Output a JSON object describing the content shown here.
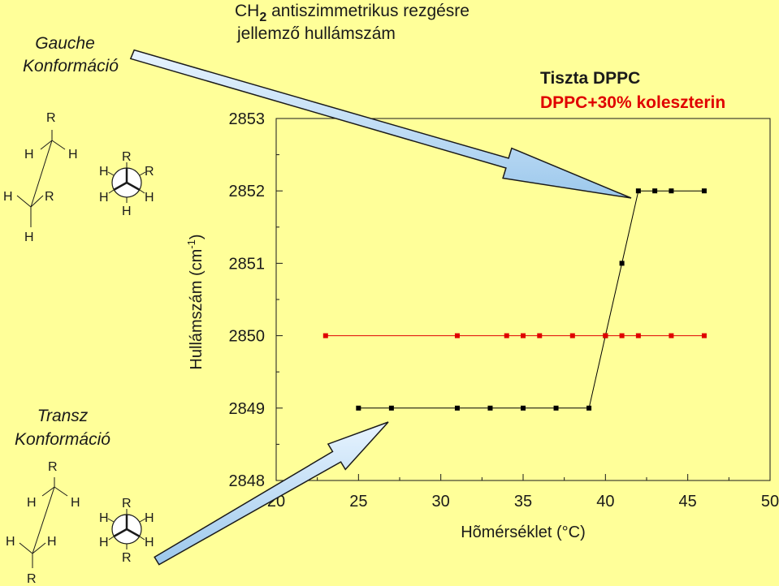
{
  "header": {
    "ch2_main": "CH",
    "ch2_sub": "2",
    "ch2_rest": " antiszimmetrikus rezgésre",
    "line2": "jellemző hullámszám"
  },
  "gauche": {
    "line1": "Gauche",
    "line2": "Konformáció"
  },
  "transz": {
    "line1": "Transz",
    "line2": "Konformáció"
  },
  "legend": {
    "pure": {
      "label": "Tiszta DPPC",
      "color": "#1a1a1a"
    },
    "chol": {
      "label": "DPPC+30% koleszterin",
      "color": "#e00000"
    }
  },
  "chart_data": {
    "type": "scatter",
    "xlabel": "Hõmérséklet (°C)",
    "ylabel_main": "Hullámszám (cm",
    "ylabel_sup": "-1",
    "ylabel_close": ")",
    "xlim": [
      20,
      50
    ],
    "ylim": [
      2848,
      2853
    ],
    "x_ticks": [
      "20",
      "25",
      "30",
      "35",
      "40",
      "45",
      "50"
    ],
    "y_ticks": [
      "2853",
      "2852",
      "2851",
      "2850",
      "2849",
      "2848"
    ],
    "series": [
      {
        "name": "Tiszta DPPC",
        "color": "#000000",
        "x": [
          25,
          27,
          31,
          33,
          35,
          37,
          39,
          40,
          41,
          42,
          43,
          44,
          46
        ],
        "y": [
          2849,
          2849,
          2849,
          2849,
          2849,
          2849,
          2849,
          2850,
          2851,
          2852,
          2852,
          2852,
          2852
        ]
      },
      {
        "name": "DPPC+30% koleszterin",
        "color": "#e00000",
        "x": [
          23,
          31,
          34,
          35,
          36,
          38,
          40,
          41,
          42,
          44,
          46
        ],
        "y": [
          2850,
          2850,
          2850,
          2850,
          2850,
          2850,
          2850,
          2850,
          2850,
          2850,
          2850
        ]
      }
    ]
  },
  "molecules": {
    "R": "R",
    "H": "H"
  }
}
